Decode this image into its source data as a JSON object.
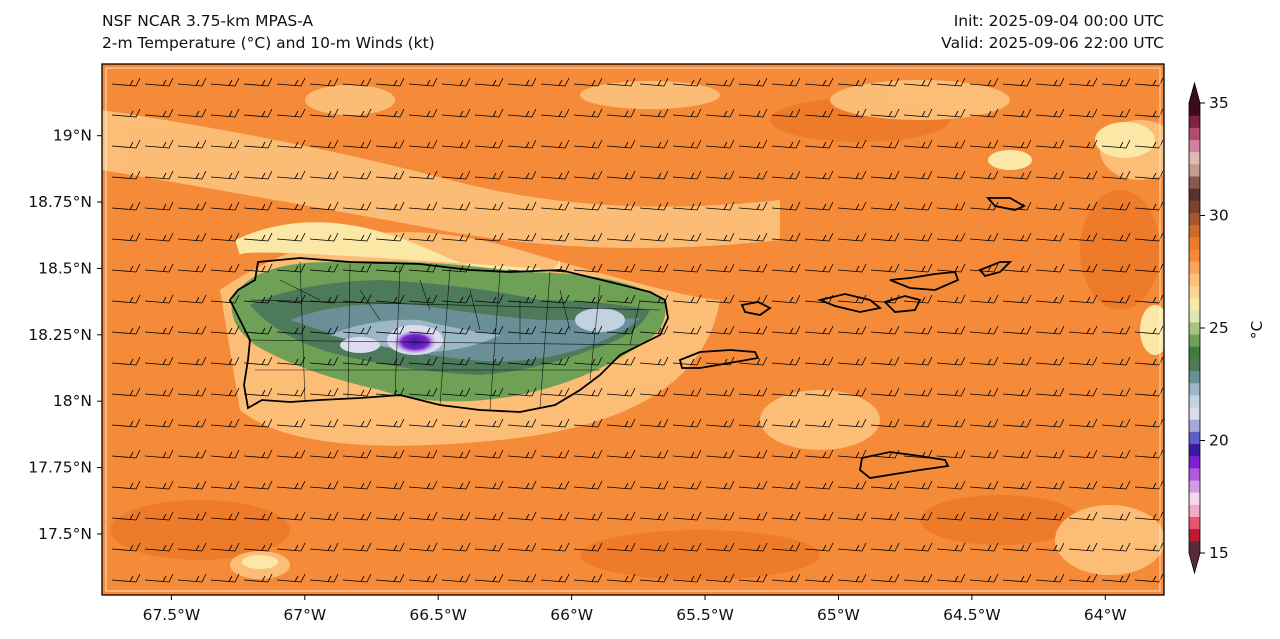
{
  "header": {
    "model": "NSF NCAR 3.75-km MPAS-A",
    "field": "2-m Temperature (°C) and 10-m Winds (kt)",
    "init": "Init: 2025-09-04 00:00 UTC",
    "valid": "Valid: 2025-09-06 22:00 UTC"
  },
  "map": {
    "lon_range": [
      -67.76,
      -63.78
    ],
    "lat_range": [
      17.27,
      19.27
    ],
    "lon_ticks": [
      {
        "value": -67.5,
        "label": "67.5°W"
      },
      {
        "value": -67.0,
        "label": "67°W"
      },
      {
        "value": -66.5,
        "label": "66.5°W"
      },
      {
        "value": -66.0,
        "label": "66°W"
      },
      {
        "value": -65.5,
        "label": "65.5°W"
      },
      {
        "value": -65.0,
        "label": "65°W"
      },
      {
        "value": -64.5,
        "label": "64.5°W"
      },
      {
        "value": -64.0,
        "label": "64°W"
      }
    ],
    "lat_ticks": [
      {
        "value": 19.0,
        "label": "19°N"
      },
      {
        "value": 18.75,
        "label": "18.75°N"
      },
      {
        "value": 18.5,
        "label": "18.5°N"
      },
      {
        "value": 18.25,
        "label": "18.25°N"
      },
      {
        "value": 18.0,
        "label": "18°N"
      },
      {
        "value": 17.75,
        "label": "17.75°N"
      },
      {
        "value": 17.5,
        "label": "17.5°N"
      }
    ],
    "background_color": "#f58b38",
    "wind_barb_color": "#000000"
  },
  "colorbar": {
    "range": [
      15,
      35
    ],
    "ticks": [
      "15",
      "20",
      "25",
      "30",
      "35"
    ],
    "unit": "°C",
    "colors": [
      "#5a2a3c",
      "#c0182f",
      "#e8546e",
      "#f3a9c6",
      "#f5d6ee",
      "#d39be8",
      "#b05ae0",
      "#7d22d0",
      "#3a1aa0",
      "#5f5fc5",
      "#a7a7dd",
      "#dcdcef",
      "#c2d2e0",
      "#9cb7c6",
      "#6a8f96",
      "#4d7a5a",
      "#3f7d3c",
      "#6ea056",
      "#a7c27e",
      "#dde8b0",
      "#fbe7a6",
      "#fdd491",
      "#fcc07a",
      "#f9a65b",
      "#f58b38",
      "#ee7b2a",
      "#d06a28",
      "#a8552c",
      "#7b4230",
      "#5a3232",
      "#8a5a52",
      "#c59a8c",
      "#e0b8b5",
      "#d37f9d",
      "#b24a72",
      "#7d2240",
      "#3c0a18"
    ]
  }
}
